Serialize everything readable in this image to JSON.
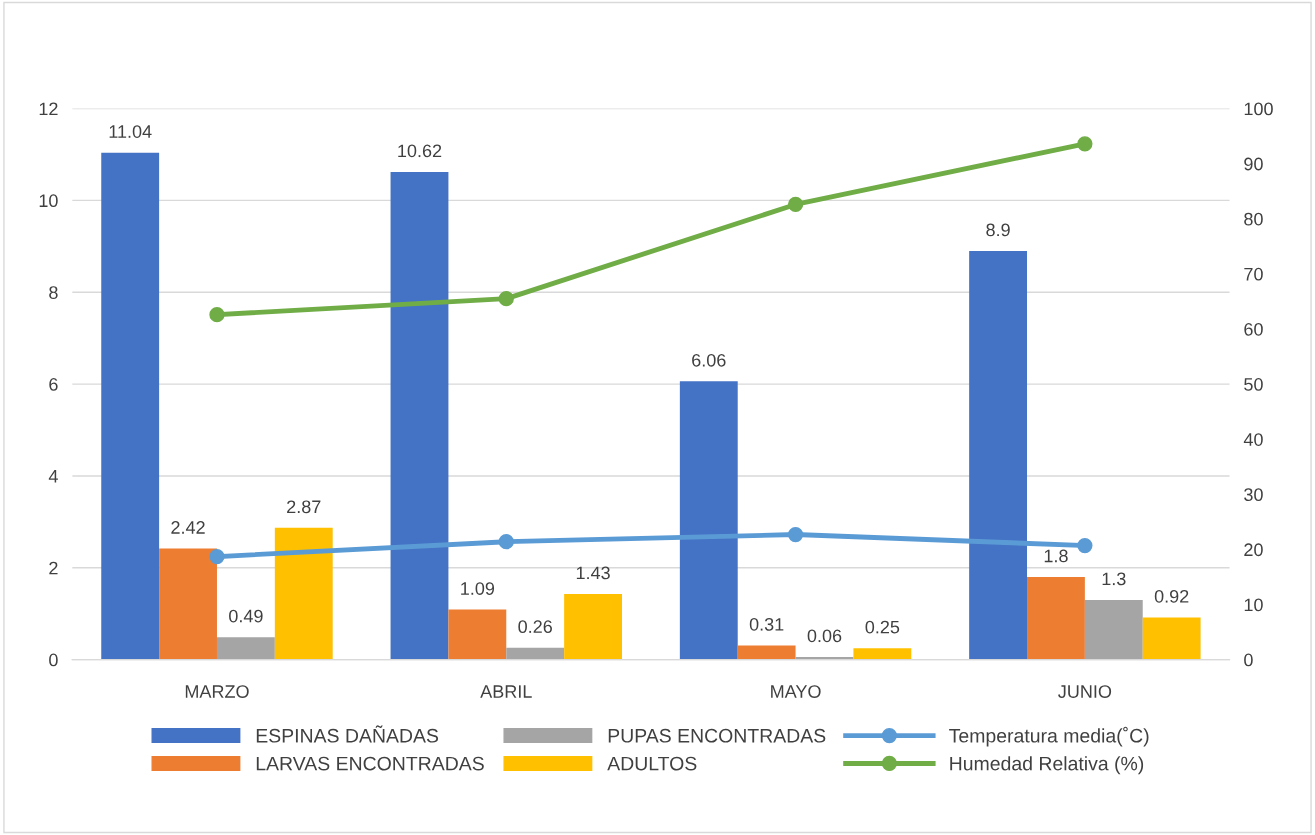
{
  "chart_data": {
    "type": "bar",
    "categories": [
      "MARZO",
      "ABRIL",
      "MAYO",
      "JUNIO"
    ],
    "series": [
      {
        "name": "ESPINAS DAÑADAS",
        "color": "#4472c4",
        "values": [
          11.04,
          10.62,
          6.06,
          8.9
        ],
        "value_labels": [
          "11.04",
          "10.62",
          "6.06",
          "8.9"
        ]
      },
      {
        "name": "LARVAS ENCONTRADAS",
        "color": "#ed7d31",
        "values": [
          2.42,
          1.09,
          0.31,
          1.8
        ],
        "value_labels": [
          "2.42",
          "1.09",
          "0.31",
          "1.8"
        ]
      },
      {
        "name": "PUPAS ENCONTRADAS",
        "color": "#a5a5a5",
        "values": [
          0.49,
          0.26,
          0.06,
          1.3
        ],
        "value_labels": [
          "0.49",
          "0.26",
          "0.06",
          "1.3"
        ]
      },
      {
        "name": "ADULTOS",
        "color": "#ffc000",
        "values": [
          2.87,
          1.43,
          0.25,
          0.92
        ],
        "value_labels": [
          "2.87",
          "1.43",
          "0.25",
          "0.92"
        ]
      },
      {
        "name": "Temperatura media(˚C)",
        "color": "#5b9bd5",
        "type": "line",
        "axis": "y2",
        "values": [
          18.7,
          21.4,
          22.7,
          20.7
        ]
      },
      {
        "name": "Humedad Relativa (%)",
        "color": "#70ad47",
        "type": "line",
        "axis": "y2",
        "values": [
          62.6,
          65.5,
          82.6,
          93.6
        ]
      }
    ],
    "ylim": [
      0,
      12
    ],
    "yticks": [
      0,
      2,
      4,
      6,
      8,
      10,
      12
    ],
    "y2lim": [
      0,
      100
    ],
    "y2ticks": [
      0,
      10,
      20,
      30,
      40,
      50,
      60,
      70,
      80,
      90,
      100
    ],
    "grid": "y",
    "legend": "bottom",
    "marker": "circle"
  }
}
